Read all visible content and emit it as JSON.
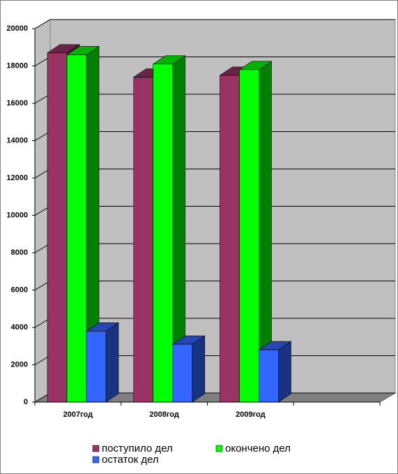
{
  "chart_data": {
    "type": "bar3d",
    "categories": [
      "2007год",
      "2008год",
      "2009год",
      null
    ],
    "series": [
      {
        "name": "поступило дел",
        "color": "#993366",
        "values": [
          18700,
          17400,
          17500,
          null
        ]
      },
      {
        "name": "окончено дел",
        "color": "#00ff00",
        "values": [
          18600,
          18100,
          17800,
          null
        ]
      },
      {
        "name": "остаток дел",
        "color": "#3366ff",
        "values": [
          3800,
          3100,
          2800,
          null
        ]
      }
    ],
    "ylim": [
      0,
      20000
    ],
    "yticks": [
      0,
      2000,
      4000,
      6000,
      8000,
      10000,
      12000,
      14000,
      16000,
      18000,
      20000
    ],
    "grid": true
  }
}
